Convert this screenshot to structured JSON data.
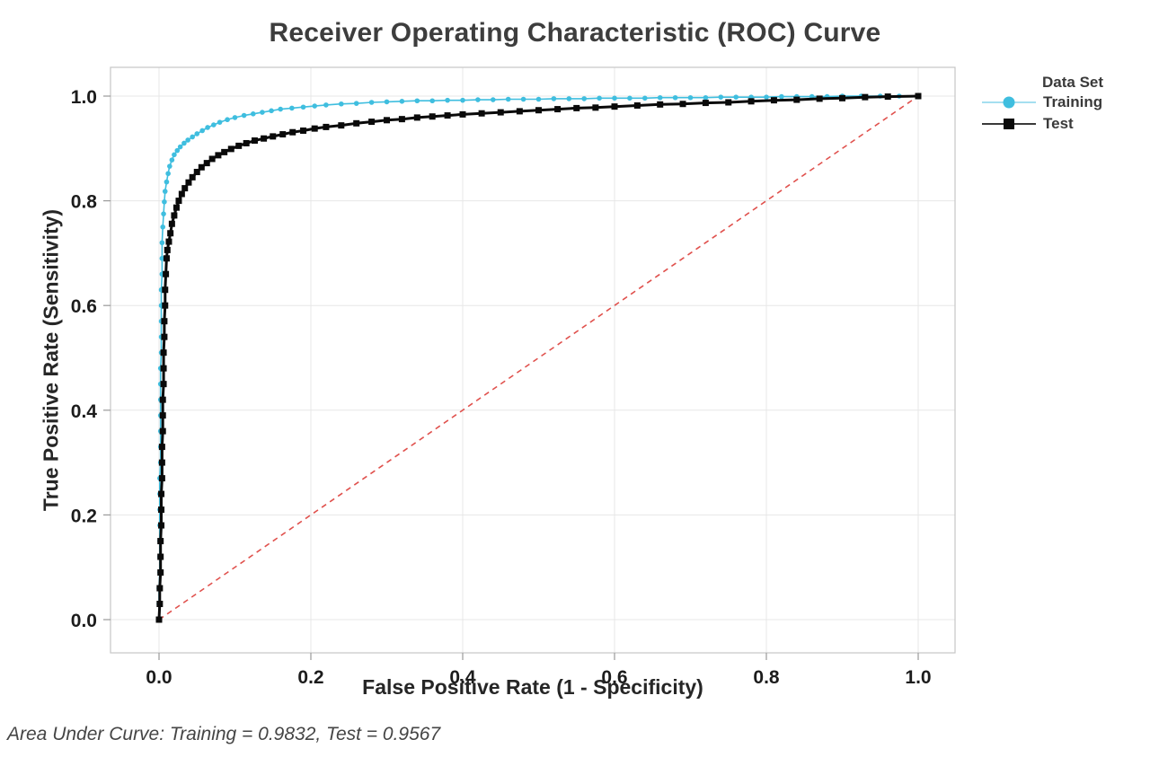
{
  "footer": {
    "text": "Area Under Curve: Training = 0.9832, Test = 0.9567"
  },
  "chart_data": {
    "type": "line",
    "title": "Receiver Operating Characteristic (ROC) Curve",
    "xlabel": "False Positive Rate (1 - Specificity)",
    "ylabel": "True Positive Rate (Sensitivity)",
    "xlim": [
      0.0,
      1.0
    ],
    "ylim": [
      0.0,
      1.0
    ],
    "xticks": [
      "0.0",
      "0.2",
      "0.4",
      "0.6",
      "0.8",
      "1.0"
    ],
    "yticks": [
      "0.0",
      "0.2",
      "0.4",
      "0.6",
      "0.8",
      "1.0"
    ],
    "grid": true,
    "legend_position": "right",
    "legend_title": "Data Set",
    "colors": {
      "grid": "#e7e7e7",
      "frame": "#c6c6c6",
      "tick": "#9a9a9a",
      "reference": "#e0514d",
      "training": "#3fbedf",
      "test": "#0a0a0a",
      "training_legend_line": "#a5dff0",
      "test_legend_line": "#3a3a3a"
    },
    "reference_line": {
      "type": "diagonal",
      "style": "dashed",
      "from": [
        0,
        0
      ],
      "to": [
        1,
        1
      ]
    },
    "annotations": {
      "auc_training": 0.9832,
      "auc_test": 0.9567
    },
    "series": [
      {
        "name": "Training",
        "marker": "circle",
        "color": "#3fbedf",
        "auc": 0.9832,
        "points": [
          [
            0.0,
            0.0
          ],
          [
            0.0,
            0.03
          ],
          [
            0.0,
            0.06
          ],
          [
            0.001,
            0.09
          ],
          [
            0.001,
            0.12
          ],
          [
            0.001,
            0.15
          ],
          [
            0.001,
            0.18
          ],
          [
            0.001,
            0.21
          ],
          [
            0.001,
            0.24
          ],
          [
            0.001,
            0.27
          ],
          [
            0.002,
            0.3
          ],
          [
            0.002,
            0.33
          ],
          [
            0.002,
            0.36
          ],
          [
            0.002,
            0.39
          ],
          [
            0.002,
            0.42
          ],
          [
            0.002,
            0.45
          ],
          [
            0.002,
            0.48
          ],
          [
            0.003,
            0.51
          ],
          [
            0.003,
            0.54
          ],
          [
            0.003,
            0.57
          ],
          [
            0.003,
            0.6
          ],
          [
            0.003,
            0.63
          ],
          [
            0.004,
            0.66
          ],
          [
            0.004,
            0.69
          ],
          [
            0.004,
            0.72
          ],
          [
            0.005,
            0.75
          ],
          [
            0.006,
            0.775
          ],
          [
            0.007,
            0.798
          ],
          [
            0.008,
            0.818
          ],
          [
            0.01,
            0.836
          ],
          [
            0.012,
            0.852
          ],
          [
            0.014,
            0.866
          ],
          [
            0.017,
            0.878
          ],
          [
            0.02,
            0.888
          ],
          [
            0.024,
            0.896
          ],
          [
            0.028,
            0.903
          ],
          [
            0.033,
            0.91
          ],
          [
            0.038,
            0.916
          ],
          [
            0.044,
            0.922
          ],
          [
            0.05,
            0.928
          ],
          [
            0.057,
            0.934
          ],
          [
            0.064,
            0.94
          ],
          [
            0.072,
            0.945
          ],
          [
            0.08,
            0.95
          ],
          [
            0.09,
            0.955
          ],
          [
            0.1,
            0.959
          ],
          [
            0.112,
            0.963
          ],
          [
            0.124,
            0.966
          ],
          [
            0.136,
            0.969
          ],
          [
            0.148,
            0.972
          ],
          [
            0.16,
            0.975
          ],
          [
            0.175,
            0.977
          ],
          [
            0.19,
            0.979
          ],
          [
            0.205,
            0.981
          ],
          [
            0.22,
            0.983
          ],
          [
            0.24,
            0.985
          ],
          [
            0.26,
            0.986
          ],
          [
            0.28,
            0.988
          ],
          [
            0.3,
            0.989
          ],
          [
            0.32,
            0.99
          ],
          [
            0.34,
            0.991
          ],
          [
            0.36,
            0.991
          ],
          [
            0.38,
            0.992
          ],
          [
            0.4,
            0.992
          ],
          [
            0.42,
            0.993
          ],
          [
            0.44,
            0.993
          ],
          [
            0.46,
            0.994
          ],
          [
            0.48,
            0.994
          ],
          [
            0.5,
            0.994
          ],
          [
            0.52,
            0.995
          ],
          [
            0.54,
            0.995
          ],
          [
            0.56,
            0.995
          ],
          [
            0.58,
            0.996
          ],
          [
            0.6,
            0.996
          ],
          [
            0.62,
            0.996
          ],
          [
            0.64,
            0.996
          ],
          [
            0.66,
            0.997
          ],
          [
            0.68,
            0.997
          ],
          [
            0.7,
            0.997
          ],
          [
            0.72,
            0.997
          ],
          [
            0.74,
            0.998
          ],
          [
            0.76,
            0.998
          ],
          [
            0.78,
            0.998
          ],
          [
            0.8,
            0.998
          ],
          [
            0.82,
            0.999
          ],
          [
            0.84,
            0.999
          ],
          [
            0.86,
            0.999
          ],
          [
            0.88,
            0.999
          ],
          [
            0.9,
            1.0
          ],
          [
            0.925,
            1.0
          ],
          [
            0.95,
            1.0
          ],
          [
            0.975,
            1.0
          ],
          [
            1.0,
            1.0
          ]
        ]
      },
      {
        "name": "Test",
        "marker": "square",
        "color": "#0a0a0a",
        "auc": 0.9567,
        "points": [
          [
            0.0,
            0.0
          ],
          [
            0.001,
            0.03
          ],
          [
            0.001,
            0.06
          ],
          [
            0.002,
            0.09
          ],
          [
            0.002,
            0.12
          ],
          [
            0.002,
            0.15
          ],
          [
            0.003,
            0.18
          ],
          [
            0.003,
            0.21
          ],
          [
            0.003,
            0.24
          ],
          [
            0.004,
            0.27
          ],
          [
            0.004,
            0.3
          ],
          [
            0.004,
            0.33
          ],
          [
            0.005,
            0.36
          ],
          [
            0.005,
            0.39
          ],
          [
            0.005,
            0.42
          ],
          [
            0.006,
            0.45
          ],
          [
            0.006,
            0.48
          ],
          [
            0.006,
            0.51
          ],
          [
            0.007,
            0.54
          ],
          [
            0.007,
            0.57
          ],
          [
            0.008,
            0.6
          ],
          [
            0.008,
            0.63
          ],
          [
            0.009,
            0.66
          ],
          [
            0.01,
            0.69
          ],
          [
            0.011,
            0.706
          ],
          [
            0.013,
            0.722
          ],
          [
            0.015,
            0.738
          ],
          [
            0.017,
            0.756
          ],
          [
            0.02,
            0.772
          ],
          [
            0.023,
            0.787
          ],
          [
            0.026,
            0.8
          ],
          [
            0.03,
            0.813
          ],
          [
            0.034,
            0.824
          ],
          [
            0.039,
            0.835
          ],
          [
            0.044,
            0.845
          ],
          [
            0.05,
            0.855
          ],
          [
            0.056,
            0.864
          ],
          [
            0.063,
            0.872
          ],
          [
            0.07,
            0.88
          ],
          [
            0.078,
            0.887
          ],
          [
            0.086,
            0.893
          ],
          [
            0.095,
            0.899
          ],
          [
            0.105,
            0.905
          ],
          [
            0.115,
            0.91
          ],
          [
            0.126,
            0.915
          ],
          [
            0.138,
            0.919
          ],
          [
            0.15,
            0.923
          ],
          [
            0.163,
            0.927
          ],
          [
            0.176,
            0.931
          ],
          [
            0.19,
            0.934
          ],
          [
            0.205,
            0.938
          ],
          [
            0.22,
            0.941
          ],
          [
            0.24,
            0.944
          ],
          [
            0.26,
            0.948
          ],
          [
            0.28,
            0.951
          ],
          [
            0.3,
            0.954
          ],
          [
            0.32,
            0.956
          ],
          [
            0.34,
            0.959
          ],
          [
            0.36,
            0.961
          ],
          [
            0.38,
            0.963
          ],
          [
            0.4,
            0.965
          ],
          [
            0.425,
            0.967
          ],
          [
            0.45,
            0.969
          ],
          [
            0.475,
            0.971
          ],
          [
            0.5,
            0.973
          ],
          [
            0.525,
            0.975
          ],
          [
            0.55,
            0.977
          ],
          [
            0.575,
            0.978
          ],
          [
            0.6,
            0.98
          ],
          [
            0.63,
            0.982
          ],
          [
            0.66,
            0.984
          ],
          [
            0.69,
            0.985
          ],
          [
            0.72,
            0.987
          ],
          [
            0.75,
            0.988
          ],
          [
            0.78,
            0.99
          ],
          [
            0.81,
            0.992
          ],
          [
            0.84,
            0.993
          ],
          [
            0.87,
            0.995
          ],
          [
            0.9,
            0.996
          ],
          [
            0.93,
            0.998
          ],
          [
            0.96,
            0.999
          ],
          [
            1.0,
            1.0
          ]
        ]
      }
    ]
  }
}
